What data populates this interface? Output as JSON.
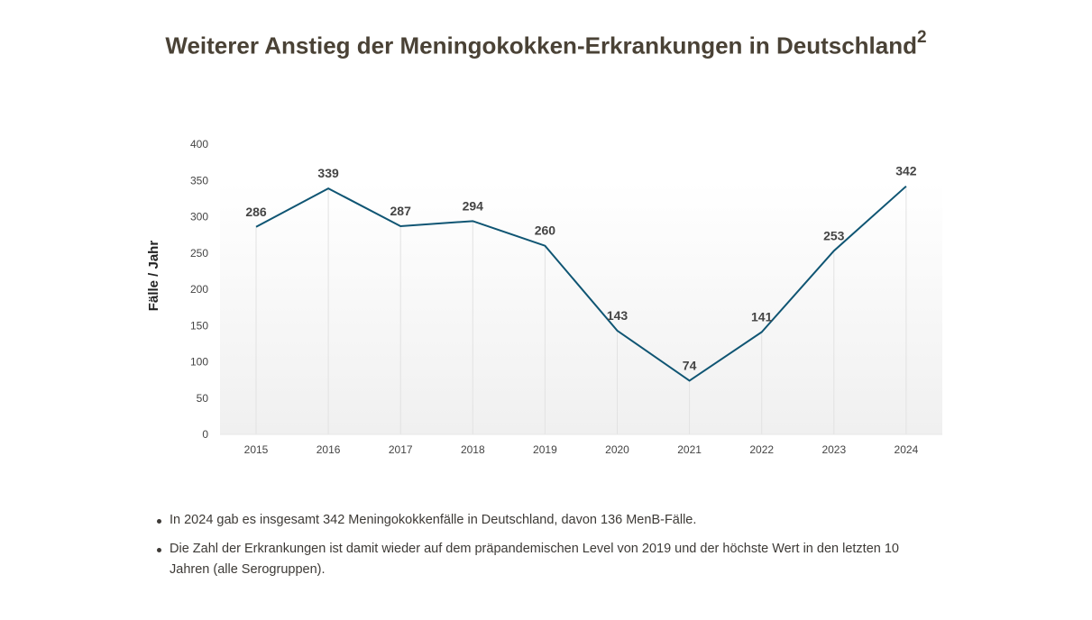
{
  "title": "Weiterer Anstieg der Meningokokken-Erkrankungen in Deutschland",
  "title_superscript": "2",
  "chart_data": {
    "type": "line",
    "ylabel": "Fälle / Jahr",
    "xlabel": "",
    "x": [
      "2015",
      "2016",
      "2017",
      "2018",
      "2019",
      "2020",
      "2021",
      "2022",
      "2023",
      "2024"
    ],
    "values": [
      286,
      339,
      287,
      294,
      260,
      143,
      74,
      141,
      253,
      342
    ],
    "ylim": [
      0,
      400
    ],
    "yticks": [
      0,
      50,
      100,
      150,
      200,
      250,
      300,
      350,
      400
    ],
    "line_color": "#0f5573",
    "grid": "vertical",
    "data_labels": true
  },
  "bullets": [
    "In 2024 gab es insgesamt 342 Meningokokkenfälle in Deutschland, davon 136 MenB-Fälle.",
    "Die Zahl der Erkrankungen ist damit wieder auf dem präpandemischen Level von 2019 und der höchste Wert in den letzten 10 Jahren (alle Serogruppen)."
  ]
}
